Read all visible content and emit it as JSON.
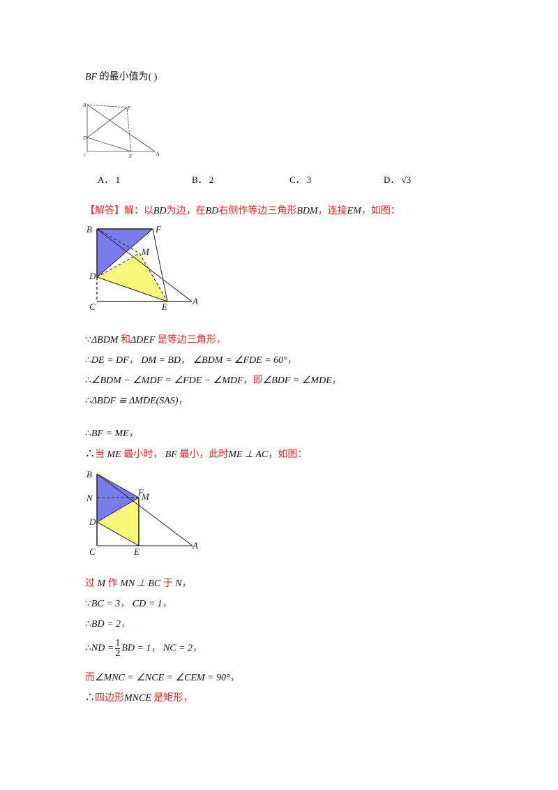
{
  "question": {
    "stem_math": "BF",
    "stem_text": "的最小值为",
    "blank": "(       )"
  },
  "options": [
    {
      "label": "A．",
      "value": "1"
    },
    {
      "label": "B．",
      "value": "2"
    },
    {
      "label": "C．",
      "value": "3"
    },
    {
      "label": "D．",
      "value": "√3"
    }
  ],
  "figure_labels": {
    "B": "B",
    "F": "F",
    "D": "D",
    "C": "C",
    "E": "E",
    "A": "A",
    "M": "M",
    "N": "N"
  },
  "colors": {
    "answer_red": "#ee2222",
    "blue_fill": "#7b7bf0",
    "yellow_fill": "#f7f77a"
  },
  "solution": {
    "heading": "【解答】解：",
    "l1": [
      "以",
      "BD",
      "为边，在",
      "BD",
      "右侧作等边三角形",
      "BDM",
      "，连接",
      "EM",
      "，如图："
    ],
    "l2": [
      "∵",
      "ΔBDM",
      "和",
      "ΔDEF",
      "是等边三角形，"
    ],
    "l3": [
      "∴",
      "DE = DF",
      "，",
      "DM = BD",
      "，",
      "∠BDM = ∠FDE = 60°",
      "，"
    ],
    "l4": [
      "∴",
      "∠BDM − ∠MDF = ∠FDE − ∠MDF",
      "，即",
      "∠BDF = ∠MDE",
      "，"
    ],
    "l5": [
      "∴",
      "ΔBDF ≅ ΔMDE(SAS)",
      "，"
    ],
    "l6": [
      "∴",
      "BF = ME",
      "，"
    ],
    "l7": [
      "∴",
      "当",
      "ME",
      "最小时，",
      "BF",
      "最小，此时",
      "ME ⊥ AC",
      "，如图："
    ],
    "l8": [
      "过",
      "M",
      "作",
      "MN ⊥ BC",
      "于",
      "N",
      "，"
    ],
    "l9": [
      "∵",
      "BC = 3",
      "，",
      "CD = 1",
      "，"
    ],
    "l10": [
      "∴",
      "BD = 2",
      "，"
    ],
    "l11": [
      "∴",
      "ND =",
      "1",
      "2",
      "BD = 1",
      "，",
      "NC = 2",
      "，"
    ],
    "l12": [
      "而",
      "∠MNC = ∠NCE = ∠CEM = 90°",
      "，"
    ],
    "l13": [
      "∴",
      "四边形",
      "MNCE",
      "是矩形，"
    ]
  }
}
